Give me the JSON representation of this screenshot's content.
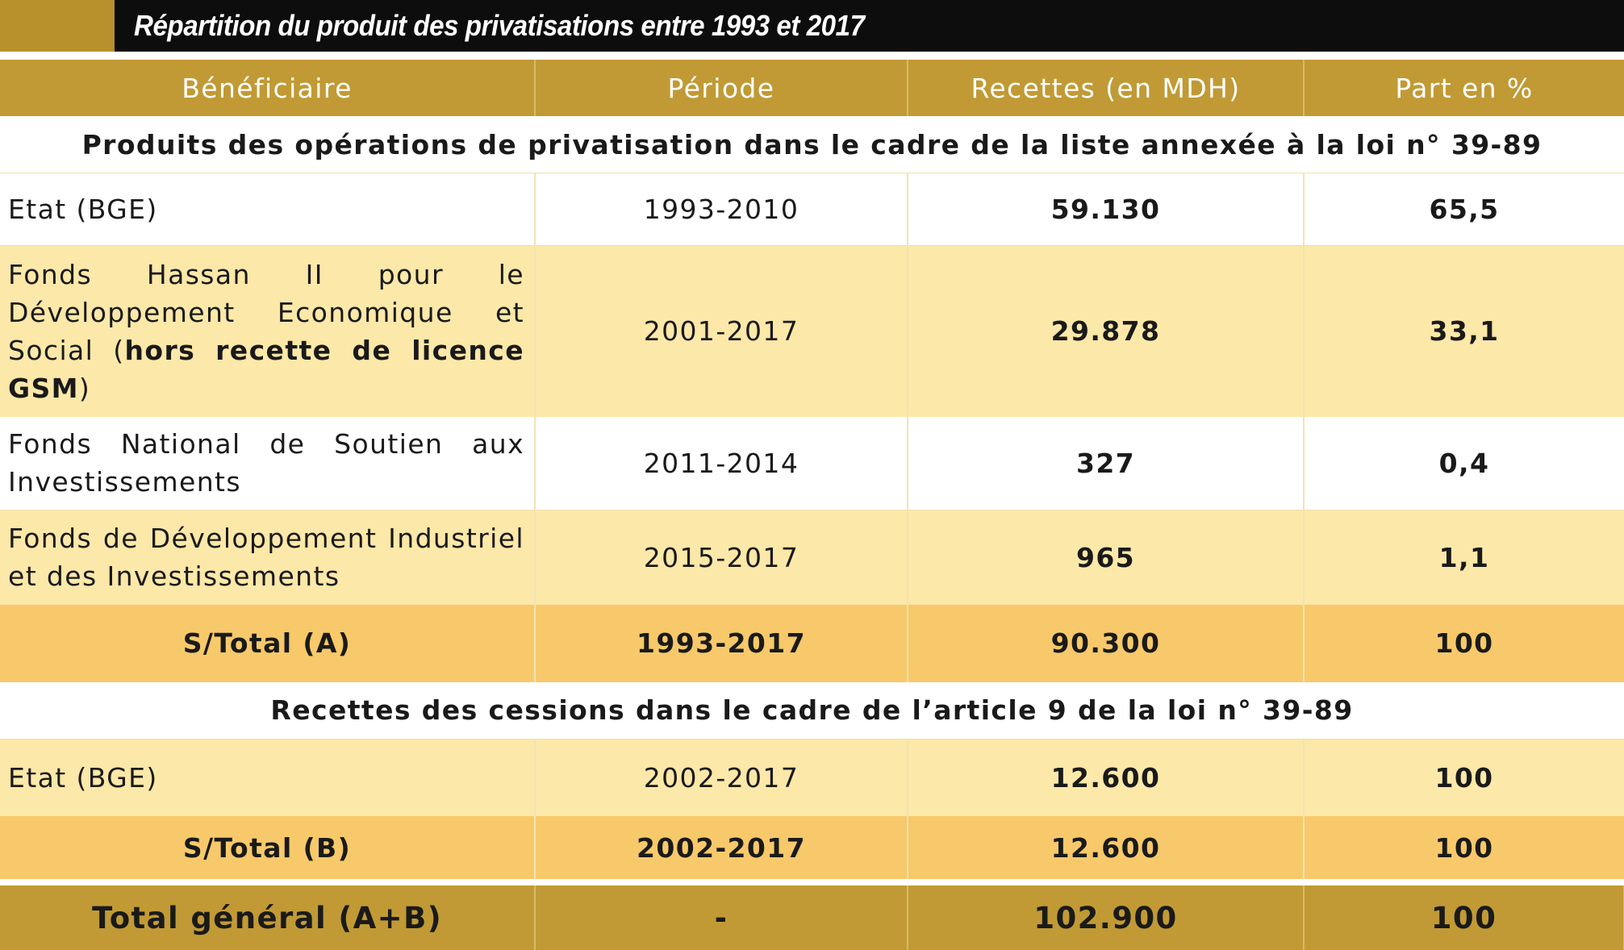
{
  "title": "Répartition du produit des privatisations entre 1993 et 2017",
  "headers": {
    "beneficiaire": "Bénéficiaire",
    "periode": "Période",
    "recettes": "Recettes (en MDH)",
    "part": "Part en %"
  },
  "section_a": {
    "heading": "Produits des opérations de privatisation dans le cadre de la liste annexée à la loi n° 39-89",
    "rows": [
      {
        "beneficiaire": "Etat (BGE)",
        "periode": "1993-2010",
        "recettes": "59.130",
        "part": "65,5"
      },
      {
        "beneficiaire_main": "Fonds Hassan II pour le Développement Economique et Social (",
        "beneficiaire_bold": "hors recette de licence GSM",
        "beneficiaire_end": ")",
        "periode": "2001-2017",
        "recettes": "29.878",
        "part": "33,1"
      },
      {
        "beneficiaire": "Fonds National de Soutien aux Investissements",
        "periode": "2011-2014",
        "recettes": "327",
        "part": "0,4"
      },
      {
        "beneficiaire": "Fonds de Développement Industriel et des Investissements",
        "periode": "2015-2017",
        "recettes": "965",
        "part": "1,1"
      }
    ],
    "subtotal": {
      "label": "S/Total (A)",
      "periode": "1993-2017",
      "recettes": "90.300",
      "part": "100"
    }
  },
  "section_b": {
    "heading": "Recettes des cessions dans le cadre de l’article 9 de la loi n° 39-89",
    "rows": [
      {
        "beneficiaire": "Etat (BGE)",
        "periode": "2002-2017",
        "recettes": "12.600",
        "part": "100"
      }
    ],
    "subtotal": {
      "label": "S/Total (B)",
      "periode": "2002-2017",
      "recettes": "12.600",
      "part": "100"
    }
  },
  "grand_total": {
    "label": "Total général (A+B)",
    "periode": "-",
    "recettes": "102.900",
    "part": "100"
  },
  "colors": {
    "gold": "#c19a35",
    "light_yellow": "#fce8a8",
    "subtotal_yellow": "#f7c96a",
    "title_bar": "#0d0d0d"
  }
}
